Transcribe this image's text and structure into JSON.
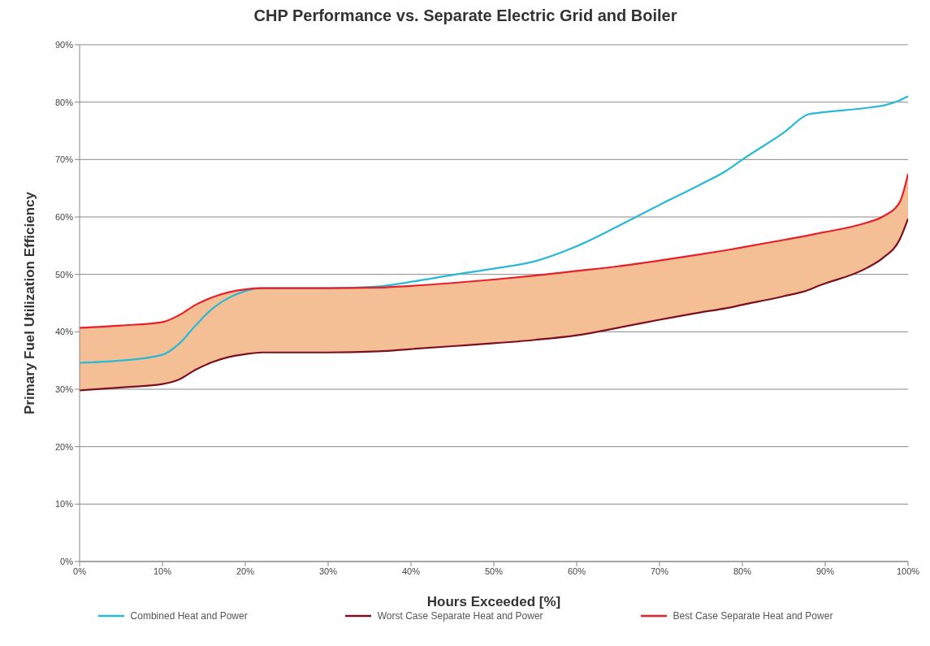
{
  "chart_data": {
    "type": "line",
    "title": "CHP Performance vs. Separate Electric Grid and Boiler",
    "xlabel": "Hours Exceeded [%]",
    "ylabel": "Primary Fuel Utilization Efficiency",
    "x": [
      0,
      5,
      10,
      12,
      14,
      16,
      18,
      20,
      22,
      30,
      36,
      40,
      45,
      50,
      55,
      60,
      65,
      70,
      75,
      78,
      80,
      85,
      88,
      89,
      95,
      97,
      99,
      100
    ],
    "series": [
      {
        "name": "Combined Heat and Power",
        "color": "#27b9d6",
        "values": [
          34.6,
          35,
          36,
          37.9,
          41.1,
          44,
          45.9,
          47.1,
          47.6,
          47.6,
          47.9,
          48.7,
          49.9,
          51,
          52.3,
          54.9,
          58.4,
          62.1,
          65.7,
          68,
          70,
          74.7,
          77.9,
          78.1,
          79,
          79.4,
          80.3,
          81
        ]
      },
      {
        "name": "Worst Case Separate Heat and Power",
        "color": "#7a1020",
        "values": [
          29.8,
          30.3,
          30.9,
          31.7,
          33.4,
          34.7,
          35.6,
          36.1,
          36.4,
          36.4,
          36.6,
          37,
          37.5,
          38,
          38.6,
          39.4,
          40.7,
          42.1,
          43.4,
          44.1,
          44.7,
          46.2,
          47.3,
          47.9,
          51.1,
          52.9,
          56.1,
          59.7
        ]
      },
      {
        "name": "Best Case Separate Heat and Power",
        "color": "#e8202a",
        "values": [
          40.7,
          41.1,
          41.7,
          42.9,
          44.7,
          46,
          46.9,
          47.4,
          47.6,
          47.6,
          47.7,
          48,
          48.5,
          49.1,
          49.8,
          50.6,
          51.4,
          52.4,
          53.5,
          54.2,
          54.7,
          56,
          56.8,
          57.1,
          59,
          60.1,
          62.6,
          67.5
        ],
        "lower": [
          29.8,
          30.3,
          30.9,
          31.7,
          33.4,
          34.7,
          35.6,
          36.1,
          36.4,
          36.4,
          36.6,
          37,
          37.5,
          38,
          38.6,
          39.4,
          40.7,
          42.1,
          43.4,
          44.1,
          44.7,
          46.2,
          47.3,
          47.9,
          51.1,
          52.9,
          56.1,
          59.7
        ],
        "upper": [
          40.7,
          41.1,
          41.7,
          42.9,
          44.7,
          46,
          46.9,
          47.4,
          47.6,
          47.6,
          47.7,
          48,
          48.5,
          49.1,
          49.8,
          50.6,
          51.4,
          52.4,
          53.5,
          54.2,
          54.7,
          56,
          56.8,
          57.1,
          59,
          60.1,
          62.6,
          67.5
        ]
      }
    ],
    "xlim": [
      0,
      100
    ],
    "xticks": [
      {
        "value": 0,
        "label": "0%"
      },
      {
        "value": 10,
        "label": "10%"
      },
      {
        "value": 20,
        "label": "20%"
      },
      {
        "value": 30,
        "label": "30%"
      },
      {
        "value": 40,
        "label": "40%"
      },
      {
        "value": 50,
        "label": "50%"
      },
      {
        "value": 60,
        "label": "60%"
      },
      {
        "value": 70,
        "label": "70%"
      },
      {
        "value": 80,
        "label": "80%"
      },
      {
        "value": 90,
        "label": "90%"
      },
      {
        "value": 100,
        "label": "100%"
      }
    ],
    "ylim": [
      0,
      90
    ],
    "yticks": [
      {
        "value": 0,
        "label": "0%"
      },
      {
        "value": 10,
        "label": "10%"
      },
      {
        "value": 20,
        "label": "20%"
      },
      {
        "value": 30,
        "label": "30%"
      },
      {
        "value": 40,
        "label": "40%"
      },
      {
        "value": 50,
        "label": "50%"
      },
      {
        "value": 60,
        "label": "60%"
      },
      {
        "value": 70,
        "label": "70%"
      },
      {
        "value": 80,
        "label": "80%"
      },
      {
        "value": 90,
        "label": "90%"
      }
    ],
    "grid": "y",
    "legend": "bottom",
    "marker": "none",
    "line_style": "solid"
  }
}
